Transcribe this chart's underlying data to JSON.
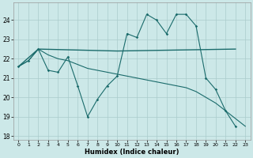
{
  "title": "",
  "xlabel": "Humidex (Indice chaleur)",
  "bg_color": "#cce8e8",
  "line_color": "#1a6b6b",
  "grid_color": "#aacccc",
  "ylim": [
    17.8,
    24.9
  ],
  "xlim": [
    -0.5,
    23.5
  ],
  "yticks": [
    18,
    19,
    20,
    21,
    22,
    23,
    24
  ],
  "xticks": [
    0,
    1,
    2,
    3,
    4,
    5,
    6,
    7,
    8,
    9,
    10,
    11,
    12,
    13,
    14,
    15,
    16,
    17,
    18,
    19,
    20,
    21,
    22,
    23
  ],
  "line1_x": [
    0,
    1,
    2,
    3,
    4,
    5,
    6,
    7,
    8,
    9,
    10,
    11,
    12,
    13,
    14,
    15,
    16,
    17,
    18,
    19,
    20,
    21,
    22
  ],
  "line1_y": [
    21.6,
    21.9,
    22.5,
    21.4,
    21.3,
    22.1,
    20.6,
    19.0,
    19.9,
    20.6,
    21.1,
    23.3,
    23.1,
    24.3,
    24.0,
    23.3,
    24.3,
    24.3,
    23.7,
    21.0,
    20.4,
    19.3,
    18.5
  ],
  "line2_x": [
    0,
    2,
    10,
    22
  ],
  "line2_y": [
    21.6,
    22.5,
    22.4,
    22.5
  ],
  "line3_x": [
    0,
    1,
    2,
    3,
    4,
    5,
    6,
    7,
    8,
    9,
    10,
    11,
    12,
    13,
    14,
    15,
    16,
    17,
    18,
    19,
    20,
    21,
    22,
    23
  ],
  "line3_y": [
    21.6,
    21.9,
    22.5,
    22.2,
    22.0,
    21.9,
    21.7,
    21.5,
    21.4,
    21.3,
    21.2,
    21.1,
    21.0,
    20.9,
    20.8,
    20.7,
    20.6,
    20.5,
    20.3,
    20.0,
    19.7,
    19.3,
    18.9,
    18.5
  ]
}
